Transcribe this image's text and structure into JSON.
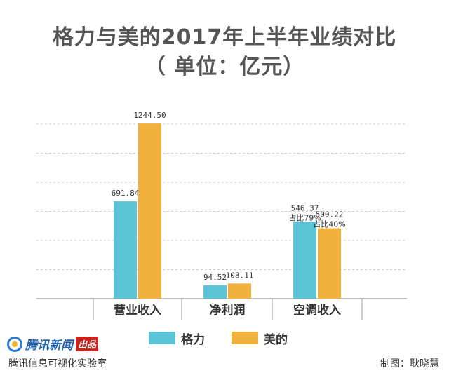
{
  "header": {
    "title_line1": "格力与美的2017年上半年业绩对比",
    "title_line2": "（ 单位：亿元）"
  },
  "chart_data": {
    "type": "bar",
    "categories": [
      "营业收入",
      "净利润",
      "空调收入"
    ],
    "series": [
      {
        "name": "格力",
        "color": "#5bc4d6",
        "values": [
          691.84,
          94.52,
          546.37
        ]
      },
      {
        "name": "美的",
        "color": "#f0b23c",
        "values": [
          1244.5,
          108.11,
          500.22
        ]
      }
    ],
    "data_labels": [
      [
        "691.84",
        "1244.50"
      ],
      [
        "94.52",
        "108.11"
      ],
      [
        "546.37",
        "500.22"
      ]
    ],
    "annotations": [
      {
        "category": "空调收入",
        "series": "格力",
        "text": "占比79%"
      },
      {
        "category": "空调收入",
        "series": "美的",
        "text": "占比40%"
      }
    ],
    "ylim": [
      0,
      1250
    ],
    "grid": true,
    "legend_position": "bottom"
  },
  "legend": [
    {
      "label": "格力",
      "color": "#5bc4d6"
    },
    {
      "label": "美的",
      "color": "#f0b23c"
    }
  ],
  "footer": {
    "logo_text": "腾讯新闻",
    "logo_badge": "出品",
    "lab_name": "腾讯信息可视化实验室",
    "credit": "制图：耿晓慧"
  }
}
